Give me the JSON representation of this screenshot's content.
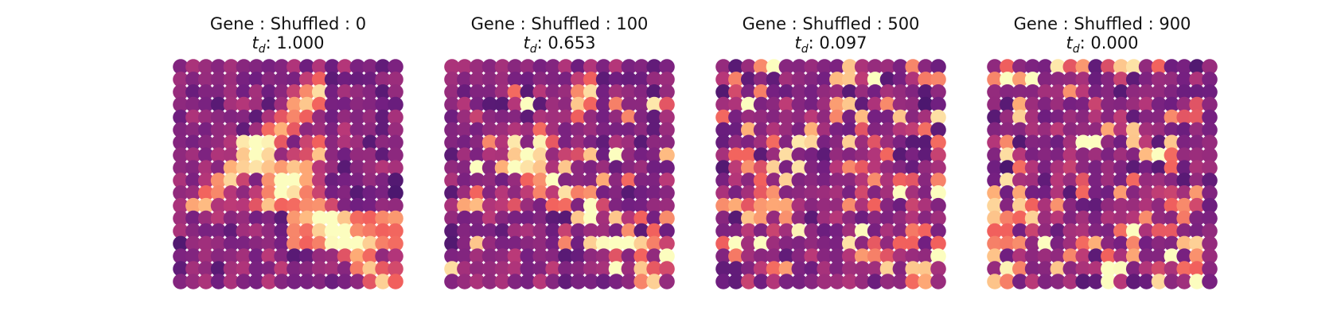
{
  "figure": {
    "panels": [
      {
        "title": "Gene : Shuffled : 0",
        "td_symbol": "t",
        "td_sub": "d",
        "td_value": "1.000",
        "shuffled": 0,
        "td": 1.0
      },
      {
        "title": "Gene : Shuffled : 100",
        "td_symbol": "t",
        "td_sub": "d",
        "td_value": "0.653",
        "shuffled": 100,
        "td": 0.653
      },
      {
        "title": "Gene : Shuffled : 500",
        "td_symbol": "t",
        "td_sub": "d",
        "td_value": "0.097",
        "shuffled": 500,
        "td": 0.097
      },
      {
        "title": "Gene : Shuffled : 900",
        "td_symbol": "t",
        "td_sub": "d",
        "td_value": "0.000",
        "shuffled": 900,
        "td": 0.0
      }
    ]
  },
  "chart_data": {
    "type": "heatmap",
    "layout": "hexagonal spot grid",
    "grid_rows": 18,
    "grid_cols": 18,
    "colormap": "magma",
    "colormap_stops": [
      "#000004",
      "#2c115f",
      "#721f81",
      "#b73779",
      "#f1605d",
      "#feb078",
      "#fcfdbf"
    ],
    "axes": "off",
    "legend": "none",
    "shuffle_counts": [
      0,
      100,
      500,
      900
    ],
    "td_values": [
      1.0,
      0.653,
      0.097,
      0.0
    ]
  }
}
